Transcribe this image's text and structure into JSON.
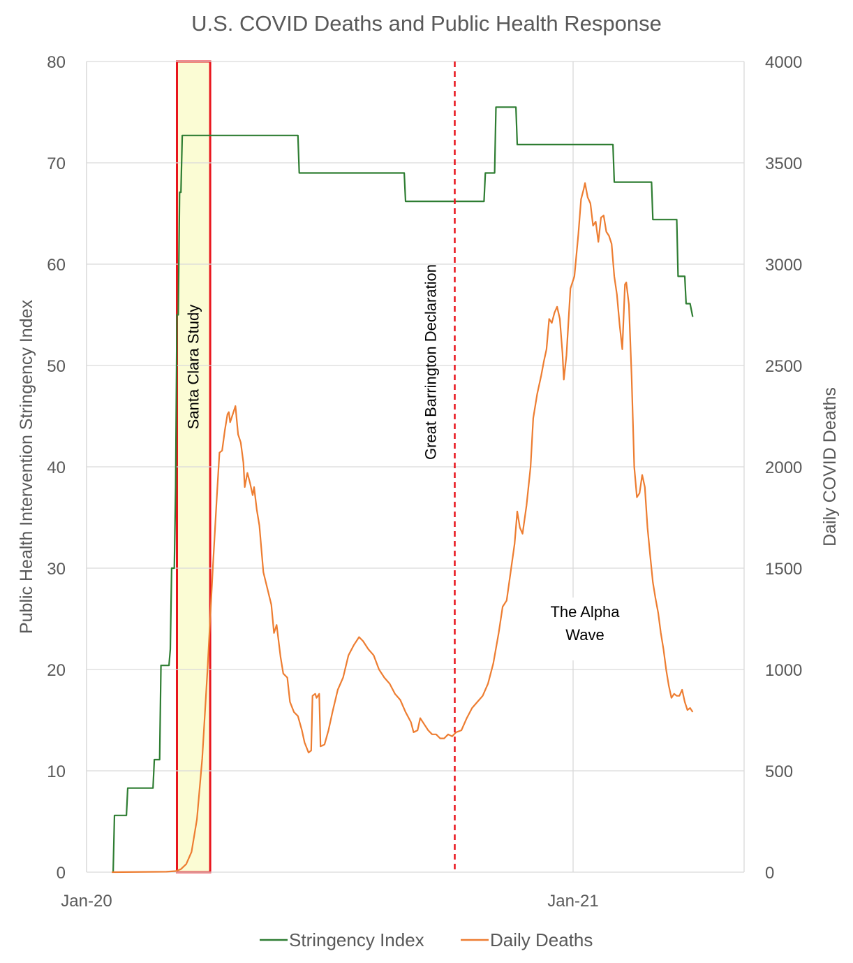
{
  "chart_data": {
    "type": "line",
    "title": "U.S. COVID Deaths and Public Health Response",
    "ylabel_left": "Public Health Intervention Stringency Index",
    "ylabel_right": "Daily COVID Deaths",
    "ylim_left": [
      0,
      80
    ],
    "ylim_right": [
      0,
      4000
    ],
    "yticks_left": [
      "0",
      "10",
      "20",
      "30",
      "40",
      "50",
      "60",
      "70",
      "80"
    ],
    "yticks_right": [
      "0",
      "500",
      "1000",
      "1500",
      "2000",
      "2500",
      "3000",
      "3500",
      "4000"
    ],
    "xticks": [
      {
        "label": "Jan-20",
        "date": "2020-01-01"
      },
      {
        "label": "Jan-21",
        "date": "2021-01-01"
      }
    ],
    "xlim": [
      "2020-01-01",
      "2021-05-01"
    ],
    "grid": "vertical and horizontal gridlines",
    "legend_position": "bottom",
    "colors": {
      "stringency": "#2e7d32",
      "deaths": "#ed7d31",
      "annotation_red": "#e8141c",
      "highlight_fill": "#fbfcd4",
      "grid": "#d9d9d9",
      "text": "#595959"
    },
    "series": [
      {
        "name": "Stringency Index",
        "axis": "left",
        "points": [
          [
            "2020-01-21",
            0
          ],
          [
            "2020-01-22",
            5.6
          ],
          [
            "2020-01-31",
            5.6
          ],
          [
            "2020-02-01",
            8.3
          ],
          [
            "2020-02-20",
            8.3
          ],
          [
            "2020-02-21",
            11.1
          ],
          [
            "2020-02-25",
            11.1
          ],
          [
            "2020-02-26",
            20.4
          ],
          [
            "2020-03-03",
            20.4
          ],
          [
            "2020-03-04",
            22
          ],
          [
            "2020-03-05",
            30
          ],
          [
            "2020-03-07",
            30
          ],
          [
            "2020-03-08",
            38
          ],
          [
            "2020-03-09",
            55
          ],
          [
            "2020-03-10",
            55
          ],
          [
            "2020-03-11",
            67.1
          ],
          [
            "2020-03-12",
            67.1
          ],
          [
            "2020-03-13",
            72.7
          ],
          [
            "2020-06-08",
            72.7
          ],
          [
            "2020-06-09",
            69
          ],
          [
            "2020-08-27",
            69
          ],
          [
            "2020-08-28",
            66.2
          ],
          [
            "2020-10-26",
            66.2
          ],
          [
            "2020-10-27",
            69
          ],
          [
            "2020-11-03",
            69
          ],
          [
            "2020-11-04",
            75.5
          ],
          [
            "2020-11-19",
            75.5
          ],
          [
            "2020-11-20",
            71.8
          ],
          [
            "2021-01-31",
            71.8
          ],
          [
            "2021-02-01",
            68.1
          ],
          [
            "2021-03-01",
            68.1
          ],
          [
            "2021-03-02",
            64.4
          ],
          [
            "2021-03-20",
            64.4
          ],
          [
            "2021-03-21",
            58.8
          ],
          [
            "2021-03-26",
            58.8
          ],
          [
            "2021-03-27",
            56.1
          ],
          [
            "2021-03-30",
            56.1
          ],
          [
            "2021-04-01",
            54.8
          ]
        ]
      },
      {
        "name": "Daily Deaths",
        "axis": "right",
        "points": [
          [
            "2020-01-20",
            0
          ],
          [
            "2020-03-01",
            2
          ],
          [
            "2020-03-08",
            5
          ],
          [
            "2020-03-12",
            15
          ],
          [
            "2020-03-16",
            40
          ],
          [
            "2020-03-20",
            100
          ],
          [
            "2020-03-24",
            260
          ],
          [
            "2020-03-28",
            560
          ],
          [
            "2020-04-01",
            1000
          ],
          [
            "2020-04-05",
            1500
          ],
          [
            "2020-04-08",
            1850
          ],
          [
            "2020-04-10",
            2070
          ],
          [
            "2020-04-12",
            2080
          ],
          [
            "2020-04-14",
            2180
          ],
          [
            "2020-04-16",
            2260
          ],
          [
            "2020-04-17",
            2270
          ],
          [
            "2020-04-18",
            2220
          ],
          [
            "2020-04-20",
            2260
          ],
          [
            "2020-04-22",
            2300
          ],
          [
            "2020-04-24",
            2160
          ],
          [
            "2020-04-26",
            2120
          ],
          [
            "2020-04-28",
            2020
          ],
          [
            "2020-04-29",
            1900
          ],
          [
            "2020-05-01",
            1970
          ],
          [
            "2020-05-03",
            1920
          ],
          [
            "2020-05-05",
            1860
          ],
          [
            "2020-05-06",
            1900
          ],
          [
            "2020-05-08",
            1790
          ],
          [
            "2020-05-10",
            1710
          ],
          [
            "2020-05-13",
            1480
          ],
          [
            "2020-05-16",
            1400
          ],
          [
            "2020-05-19",
            1320
          ],
          [
            "2020-05-21",
            1180
          ],
          [
            "2020-05-23",
            1220
          ],
          [
            "2020-05-26",
            1060
          ],
          [
            "2020-05-28",
            980
          ],
          [
            "2020-05-31",
            960
          ],
          [
            "2020-06-02",
            840
          ],
          [
            "2020-06-05",
            790
          ],
          [
            "2020-06-08",
            770
          ],
          [
            "2020-06-11",
            700
          ],
          [
            "2020-06-13",
            640
          ],
          [
            "2020-06-16",
            590
          ],
          [
            "2020-06-18",
            600
          ],
          [
            "2020-06-19",
            870
          ],
          [
            "2020-06-21",
            880
          ],
          [
            "2020-06-22",
            860
          ],
          [
            "2020-06-24",
            880
          ],
          [
            "2020-06-25",
            620
          ],
          [
            "2020-06-28",
            630
          ],
          [
            "2020-07-01",
            700
          ],
          [
            "2020-07-04",
            790
          ],
          [
            "2020-07-08",
            900
          ],
          [
            "2020-07-12",
            960
          ],
          [
            "2020-07-16",
            1070
          ],
          [
            "2020-07-20",
            1120
          ],
          [
            "2020-07-24",
            1160
          ],
          [
            "2020-07-27",
            1140
          ],
          [
            "2020-07-31",
            1100
          ],
          [
            "2020-08-04",
            1070
          ],
          [
            "2020-08-08",
            1000
          ],
          [
            "2020-08-12",
            960
          ],
          [
            "2020-08-16",
            930
          ],
          [
            "2020-08-20",
            880
          ],
          [
            "2020-08-24",
            850
          ],
          [
            "2020-08-28",
            790
          ],
          [
            "2020-09-01",
            740
          ],
          [
            "2020-09-03",
            690
          ],
          [
            "2020-09-06",
            700
          ],
          [
            "2020-09-08",
            760
          ],
          [
            "2020-09-11",
            730
          ],
          [
            "2020-09-14",
            700
          ],
          [
            "2020-09-17",
            680
          ],
          [
            "2020-09-20",
            680
          ],
          [
            "2020-09-23",
            660
          ],
          [
            "2020-09-26",
            660
          ],
          [
            "2020-09-29",
            680
          ],
          [
            "2020-10-02",
            670
          ],
          [
            "2020-10-05",
            690
          ],
          [
            "2020-10-09",
            700
          ],
          [
            "2020-10-13",
            760
          ],
          [
            "2020-10-17",
            810
          ],
          [
            "2020-10-21",
            840
          ],
          [
            "2020-10-25",
            870
          ],
          [
            "2020-10-29",
            930
          ],
          [
            "2020-11-02",
            1030
          ],
          [
            "2020-11-06",
            1180
          ],
          [
            "2020-11-09",
            1310
          ],
          [
            "2020-11-12",
            1340
          ],
          [
            "2020-11-15",
            1480
          ],
          [
            "2020-11-18",
            1620
          ],
          [
            "2020-11-20",
            1780
          ],
          [
            "2020-11-22",
            1700
          ],
          [
            "2020-11-24",
            1670
          ],
          [
            "2020-11-27",
            1810
          ],
          [
            "2020-11-30",
            2000
          ],
          [
            "2020-12-02",
            2240
          ],
          [
            "2020-12-05",
            2360
          ],
          [
            "2020-12-08",
            2450
          ],
          [
            "2020-12-10",
            2520
          ],
          [
            "2020-12-12",
            2580
          ],
          [
            "2020-12-14",
            2730
          ],
          [
            "2020-12-16",
            2710
          ],
          [
            "2020-12-18",
            2760
          ],
          [
            "2020-12-20",
            2790
          ],
          [
            "2020-12-22",
            2730
          ],
          [
            "2020-12-24",
            2560
          ],
          [
            "2020-12-25",
            2430
          ],
          [
            "2020-12-27",
            2550
          ],
          [
            "2020-12-30",
            2880
          ],
          [
            "2021-01-02",
            2940
          ],
          [
            "2021-01-05",
            3150
          ],
          [
            "2021-01-07",
            3320
          ],
          [
            "2021-01-09",
            3370
          ],
          [
            "2021-01-10",
            3400
          ],
          [
            "2021-01-12",
            3330
          ],
          [
            "2021-01-14",
            3300
          ],
          [
            "2021-01-16",
            3190
          ],
          [
            "2021-01-18",
            3210
          ],
          [
            "2021-01-20",
            3110
          ],
          [
            "2021-01-22",
            3230
          ],
          [
            "2021-01-24",
            3240
          ],
          [
            "2021-01-26",
            3160
          ],
          [
            "2021-01-28",
            3140
          ],
          [
            "2021-01-30",
            3100
          ],
          [
            "2021-02-01",
            2940
          ],
          [
            "2021-02-03",
            2850
          ],
          [
            "2021-02-05",
            2700
          ],
          [
            "2021-02-07",
            2580
          ],
          [
            "2021-02-09",
            2900
          ],
          [
            "2021-02-10",
            2910
          ],
          [
            "2021-02-12",
            2800
          ],
          [
            "2021-02-14",
            2450
          ],
          [
            "2021-02-16",
            2000
          ],
          [
            "2021-02-18",
            1850
          ],
          [
            "2021-02-20",
            1870
          ],
          [
            "2021-02-22",
            1960
          ],
          [
            "2021-02-24",
            1900
          ],
          [
            "2021-02-26",
            1700
          ],
          [
            "2021-02-28",
            1560
          ],
          [
            "2021-03-02",
            1430
          ],
          [
            "2021-03-04",
            1350
          ],
          [
            "2021-03-06",
            1280
          ],
          [
            "2021-03-08",
            1180
          ],
          [
            "2021-03-10",
            1100
          ],
          [
            "2021-03-12",
            1000
          ],
          [
            "2021-03-14",
            920
          ],
          [
            "2021-03-16",
            860
          ],
          [
            "2021-03-18",
            880
          ],
          [
            "2021-03-20",
            870
          ],
          [
            "2021-03-22",
            870
          ],
          [
            "2021-03-24",
            900
          ],
          [
            "2021-03-26",
            840
          ],
          [
            "2021-03-28",
            800
          ],
          [
            "2021-03-30",
            810
          ],
          [
            "2021-04-01",
            790
          ]
        ]
      }
    ],
    "annotations": [
      {
        "text": "Santa Clara Study",
        "kind": "shaded-box",
        "start": "2020-03-09",
        "end": "2020-04-03"
      },
      {
        "text": "Great Barrington Declaration",
        "kind": "vertical-dashed-line",
        "date": "2020-10-04"
      },
      {
        "text_lines": [
          "The Alpha",
          "Wave"
        ],
        "kind": "text"
      }
    ]
  },
  "legend": {
    "items": [
      {
        "label": "Stringency Index",
        "color": "#2e7d32"
      },
      {
        "label": "Daily Deaths",
        "color": "#ed7d31"
      }
    ]
  }
}
